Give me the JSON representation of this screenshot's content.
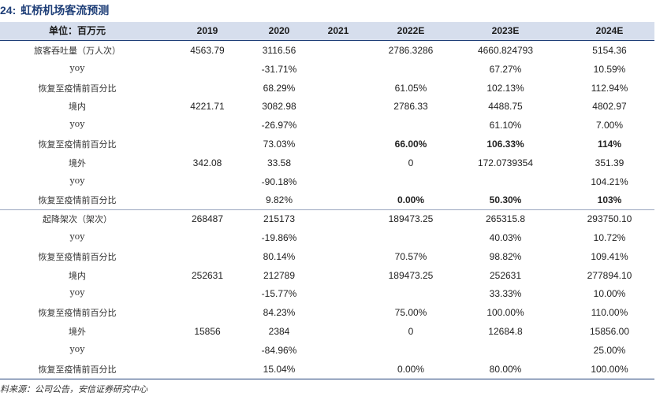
{
  "title": {
    "number": "24:",
    "text": "虹桥机场客流预测"
  },
  "header": [
    "单位：百万元",
    "2019",
    "2020",
    "2021",
    "2022E",
    "2023E",
    "2024E"
  ],
  "rows": [
    {
      "label": "旅客吞吐量（万人次）",
      "values": [
        "4563.79",
        "3116.56",
        "",
        "2786.3286",
        "4660.824793",
        "5154.36"
      ],
      "bold": [
        false,
        false,
        false,
        false,
        false,
        false
      ]
    },
    {
      "label": "yoy",
      "values": [
        "",
        "-31.71%",
        "",
        "",
        "67.27%",
        "10.59%"
      ],
      "bold": [
        false,
        false,
        false,
        false,
        false,
        false
      ]
    },
    {
      "label": "恢复至疫情前百分比",
      "values": [
        "",
        "68.29%",
        "",
        "61.05%",
        "102.13%",
        "112.94%"
      ],
      "bold": [
        false,
        false,
        false,
        false,
        false,
        false
      ]
    },
    {
      "label": "境内",
      "values": [
        "4221.71",
        "3082.98",
        "",
        "2786.33",
        "4488.75",
        "4802.97"
      ],
      "bold": [
        false,
        false,
        false,
        false,
        false,
        false
      ]
    },
    {
      "label": "yoy",
      "values": [
        "",
        "-26.97%",
        "",
        "",
        "61.10%",
        "7.00%"
      ],
      "bold": [
        false,
        false,
        false,
        false,
        false,
        false
      ]
    },
    {
      "label": "恢复至疫情前百分比",
      "values": [
        "",
        "73.03%",
        "",
        "66.00%",
        "106.33%",
        "114%"
      ],
      "bold": [
        false,
        false,
        false,
        true,
        true,
        true
      ]
    },
    {
      "label": "境外",
      "values": [
        "342.08",
        "33.58",
        "",
        "0",
        "172.0739354",
        "351.39"
      ],
      "bold": [
        false,
        false,
        false,
        false,
        false,
        false
      ]
    },
    {
      "label": "yoy",
      "values": [
        "",
        "-90.18%",
        "",
        "",
        "",
        "104.21%"
      ],
      "bold": [
        false,
        false,
        false,
        false,
        false,
        false
      ]
    },
    {
      "label": "恢复至疫情前百分比",
      "values": [
        "",
        "9.82%",
        "",
        "0.00%",
        "50.30%",
        "103%"
      ],
      "bold": [
        false,
        false,
        false,
        true,
        true,
        true
      ]
    },
    {
      "label": "起降架次（架次）",
      "values": [
        "268487",
        "215173",
        "",
        "189473.25",
        "265315.8",
        "293750.10"
      ],
      "bold": [
        false,
        false,
        false,
        false,
        false,
        false
      ]
    },
    {
      "label": "yoy",
      "values": [
        "",
        "-19.86%",
        "",
        "",
        "40.03%",
        "10.72%"
      ],
      "bold": [
        false,
        false,
        false,
        false,
        false,
        false
      ]
    },
    {
      "label": "恢复至疫情前百分比",
      "values": [
        "",
        "80.14%",
        "",
        "70.57%",
        "98.82%",
        "109.41%"
      ],
      "bold": [
        false,
        false,
        false,
        false,
        false,
        false
      ]
    },
    {
      "label": "境内",
      "values": [
        "252631",
        "212789",
        "",
        "189473.25",
        "252631",
        "277894.10"
      ],
      "bold": [
        false,
        false,
        false,
        false,
        false,
        false
      ]
    },
    {
      "label": "yoy",
      "values": [
        "",
        "-15.77%",
        "",
        "",
        "33.33%",
        "10.00%"
      ],
      "bold": [
        false,
        false,
        false,
        false,
        false,
        false
      ]
    },
    {
      "label": "恢复至疫情前百分比",
      "values": [
        "",
        "84.23%",
        "",
        "75.00%",
        "100.00%",
        "110.00%"
      ],
      "bold": [
        false,
        false,
        false,
        false,
        false,
        false
      ]
    },
    {
      "label": "境外",
      "values": [
        "15856",
        "2384",
        "",
        "0",
        "12684.8",
        "15856.00"
      ],
      "bold": [
        false,
        false,
        false,
        false,
        false,
        false
      ]
    },
    {
      "label": "yoy",
      "values": [
        "",
        "-84.96%",
        "",
        "",
        "",
        "25.00%"
      ],
      "bold": [
        false,
        false,
        false,
        false,
        false,
        false
      ]
    },
    {
      "label": "恢复至疫情前百分比",
      "values": [
        "",
        "15.04%",
        "",
        "0.00%",
        "80.00%",
        "100.00%"
      ],
      "bold": [
        false,
        false,
        false,
        false,
        false,
        false
      ]
    }
  ],
  "source": "料来源：公司公告，安信证券研究中心",
  "colors": {
    "header_bg": "#d6deed",
    "title": "#1f3f78",
    "rule": "#1f3f78"
  }
}
